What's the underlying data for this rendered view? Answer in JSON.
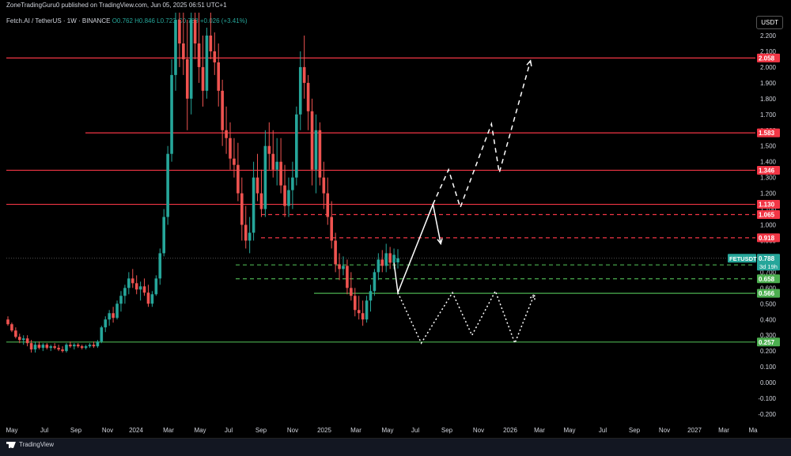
{
  "header": {
    "published_text": "ZoneTradingGuru0 published on TradingView.com, Jun 05, 2025 06:51 UTC+1",
    "legend_text": "Fetch.AI / TetherUS · 1W · BINANCE",
    "ohlc": "O0.762  H0.846  L0.723  C0.788  +0.026 (+3.41%)",
    "currency_button": "USDT"
  },
  "footer": {
    "brand": "TradingView"
  },
  "chart_data": {
    "type": "candlestick",
    "symbol": "FETUSDT",
    "x_tick_labels": [
      "May",
      "Jul",
      "Sep",
      "Nov",
      "2024",
      "Mar",
      "May",
      "Jul",
      "Sep",
      "Nov",
      "2025",
      "Mar",
      "May",
      "Jul",
      "Sep",
      "Nov",
      "2026",
      "Mar",
      "May",
      "Jul",
      "Sep",
      "Nov",
      "2027",
      "Mar",
      "Ma"
    ],
    "y_tick_labels": [
      "2.200",
      "2.100",
      "2.000",
      "1.900",
      "1.800",
      "1.700",
      "1.600",
      "1.500",
      "1.400",
      "1.300",
      "1.200",
      "1.100",
      "1.000",
      "0.900",
      "0.800",
      "0.700",
      "0.600",
      "0.500",
      "0.400",
      "0.300",
      "0.200",
      "0.100",
      "0.000",
      "-0.100",
      "-0.200"
    ],
    "ylim": [
      -0.24,
      2.26
    ],
    "current_price": {
      "label": "FETUSDT",
      "value": "0.788",
      "countdown": "3d 19h",
      "color": "#26a69a"
    },
    "resistance_levels": [
      {
        "value": "2.058",
        "style": "solid",
        "color": "#f23645"
      },
      {
        "value": "1.583",
        "style": "solid",
        "color": "#f23645"
      },
      {
        "value": "1.346",
        "style": "solid",
        "color": "#f23645"
      },
      {
        "value": "1.130",
        "style": "solid",
        "color": "#f23645"
      },
      {
        "value": "1.065",
        "style": "dashed",
        "color": "#f23645"
      },
      {
        "value": "0.918",
        "style": "dashed",
        "color": "#f23645"
      }
    ],
    "support_levels": [
      {
        "value": "0.746",
        "style": "dashed",
        "color": "#4caf50"
      },
      {
        "value": "0.658",
        "style": "dashed",
        "color": "#4caf50"
      },
      {
        "value": "0.566",
        "style": "solid",
        "color": "#4caf50"
      },
      {
        "value": "0.257",
        "style": "solid",
        "color": "#4caf50"
      }
    ],
    "candles_ohlc": [
      [
        0.4,
        0.42,
        0.36,
        0.37
      ],
      [
        0.37,
        0.38,
        0.32,
        0.33
      ],
      [
        0.33,
        0.35,
        0.28,
        0.29
      ],
      [
        0.29,
        0.31,
        0.25,
        0.27
      ],
      [
        0.27,
        0.3,
        0.24,
        0.28
      ],
      [
        0.28,
        0.3,
        0.23,
        0.25
      ],
      [
        0.25,
        0.27,
        0.19,
        0.21
      ],
      [
        0.21,
        0.26,
        0.19,
        0.24
      ],
      [
        0.24,
        0.26,
        0.21,
        0.22
      ],
      [
        0.22,
        0.25,
        0.2,
        0.24
      ],
      [
        0.24,
        0.25,
        0.21,
        0.22
      ],
      [
        0.22,
        0.24,
        0.2,
        0.23
      ],
      [
        0.23,
        0.25,
        0.21,
        0.22
      ],
      [
        0.22,
        0.24,
        0.2,
        0.21
      ],
      [
        0.21,
        0.23,
        0.19,
        0.2
      ],
      [
        0.2,
        0.25,
        0.19,
        0.24
      ],
      [
        0.24,
        0.26,
        0.22,
        0.23
      ],
      [
        0.23,
        0.25,
        0.21,
        0.24
      ],
      [
        0.24,
        0.25,
        0.22,
        0.23
      ],
      [
        0.23,
        0.24,
        0.21,
        0.22
      ],
      [
        0.22,
        0.24,
        0.21,
        0.23
      ],
      [
        0.23,
        0.25,
        0.22,
        0.24
      ],
      [
        0.24,
        0.26,
        0.22,
        0.23
      ],
      [
        0.23,
        0.27,
        0.22,
        0.26
      ],
      [
        0.26,
        0.36,
        0.25,
        0.35
      ],
      [
        0.35,
        0.42,
        0.32,
        0.4
      ],
      [
        0.4,
        0.46,
        0.36,
        0.44
      ],
      [
        0.44,
        0.48,
        0.38,
        0.41
      ],
      [
        0.41,
        0.52,
        0.4,
        0.5
      ],
      [
        0.5,
        0.58,
        0.45,
        0.55
      ],
      [
        0.55,
        0.62,
        0.5,
        0.6
      ],
      [
        0.6,
        0.7,
        0.56,
        0.66
      ],
      [
        0.66,
        0.72,
        0.6,
        0.63
      ],
      [
        0.63,
        0.68,
        0.56,
        0.59
      ],
      [
        0.59,
        0.64,
        0.52,
        0.61
      ],
      [
        0.61,
        0.66,
        0.55,
        0.57
      ],
      [
        0.57,
        0.62,
        0.48,
        0.5
      ],
      [
        0.5,
        0.58,
        0.48,
        0.56
      ],
      [
        0.56,
        0.68,
        0.55,
        0.66
      ],
      [
        0.66,
        0.85,
        0.62,
        0.82
      ],
      [
        0.82,
        1.1,
        0.8,
        1.05
      ],
      [
        1.05,
        1.5,
        1.0,
        1.45
      ],
      [
        1.45,
        2.05,
        1.4,
        1.95
      ],
      [
        1.95,
        2.4,
        1.85,
        2.3
      ],
      [
        2.3,
        2.45,
        2.0,
        2.15
      ],
      [
        2.15,
        2.35,
        1.95,
        2.05
      ],
      [
        2.05,
        2.3,
        1.6,
        1.8
      ],
      [
        1.8,
        2.4,
        1.7,
        2.3
      ],
      [
        2.3,
        2.45,
        2.05,
        2.15
      ],
      [
        2.15,
        2.35,
        1.9,
        2.0
      ],
      [
        2.0,
        2.2,
        1.75,
        1.85
      ],
      [
        1.85,
        2.25,
        1.8,
        2.2
      ],
      [
        2.2,
        2.4,
        2.05,
        2.1
      ],
      [
        2.1,
        2.22,
        1.95,
        2.03
      ],
      [
        2.03,
        2.15,
        1.75,
        1.85
      ],
      [
        1.85,
        1.92,
        1.5,
        1.6
      ],
      [
        1.6,
        1.75,
        1.45,
        1.55
      ],
      [
        1.55,
        1.65,
        1.35,
        1.42
      ],
      [
        1.42,
        1.55,
        1.3,
        1.38
      ],
      [
        1.38,
        1.52,
        1.15,
        1.2
      ],
      [
        1.2,
        1.3,
        0.9,
        1.0
      ],
      [
        1.0,
        1.12,
        0.85,
        0.9
      ],
      [
        0.9,
        1.05,
        0.82,
        0.95
      ],
      [
        0.95,
        1.4,
        0.9,
        1.3
      ],
      [
        1.3,
        1.45,
        1.15,
        1.2
      ],
      [
        1.2,
        1.35,
        1.05,
        1.1
      ],
      [
        1.1,
        1.6,
        1.05,
        1.5
      ],
      [
        1.5,
        1.65,
        1.35,
        1.45
      ],
      [
        1.45,
        1.6,
        1.3,
        1.35
      ],
      [
        1.35,
        1.55,
        1.25,
        1.4
      ],
      [
        1.4,
        1.55,
        1.2,
        1.25
      ],
      [
        1.25,
        1.38,
        1.05,
        1.12
      ],
      [
        1.12,
        1.3,
        1.05,
        1.22
      ],
      [
        1.22,
        1.4,
        1.1,
        1.3
      ],
      [
        1.3,
        1.75,
        1.25,
        1.7
      ],
      [
        1.7,
        2.1,
        1.6,
        2.0
      ],
      [
        2.0,
        2.2,
        1.8,
        1.9
      ],
      [
        1.9,
        1.95,
        1.6,
        1.72
      ],
      [
        1.72,
        1.8,
        1.25,
        1.35
      ],
      [
        1.35,
        1.7,
        1.2,
        1.6
      ],
      [
        1.6,
        1.65,
        1.25,
        1.3
      ],
      [
        1.3,
        1.4,
        1.1,
        1.2
      ],
      [
        1.2,
        1.3,
        1.0,
        1.05
      ],
      [
        1.05,
        1.15,
        0.85,
        0.9
      ],
      [
        0.9,
        0.95,
        0.7,
        0.75
      ],
      [
        0.75,
        0.82,
        0.65,
        0.72
      ],
      [
        0.72,
        0.8,
        0.68,
        0.74
      ],
      [
        0.74,
        0.78,
        0.56,
        0.6
      ],
      [
        0.6,
        0.7,
        0.52,
        0.55
      ],
      [
        0.55,
        0.6,
        0.42,
        0.46
      ],
      [
        0.46,
        0.55,
        0.4,
        0.44
      ],
      [
        0.44,
        0.52,
        0.36,
        0.4
      ],
      [
        0.4,
        0.55,
        0.38,
        0.52
      ],
      [
        0.52,
        0.62,
        0.45,
        0.58
      ],
      [
        0.58,
        0.72,
        0.55,
        0.7
      ],
      [
        0.7,
        0.82,
        0.65,
        0.78
      ],
      [
        0.78,
        0.84,
        0.7,
        0.74
      ],
      [
        0.74,
        0.88,
        0.7,
        0.82
      ],
      [
        0.82,
        0.86,
        0.72,
        0.76
      ],
      [
        0.76,
        0.85,
        0.72,
        0.81
      ],
      [
        0.762,
        0.846,
        0.723,
        0.788
      ]
    ],
    "projected_paths": [
      {
        "style": "solid",
        "color": "#ffffff",
        "points": [
          [
            "w99",
            0.76
          ],
          [
            "w100",
            0.57
          ],
          [
            "w109",
            1.13
          ],
          [
            "w111",
            0.88
          ]
        ]
      },
      {
        "style": "dashed",
        "color": "#ffffff",
        "points": [
          [
            "w109",
            1.13
          ],
          [
            "w113",
            1.35
          ],
          [
            "w116",
            1.11
          ],
          [
            "w124",
            1.64
          ],
          [
            "w126",
            1.33
          ],
          [
            "w134",
            2.04
          ]
        ]
      },
      {
        "style": "dotted",
        "color": "#ffffff",
        "points": [
          [
            "w100",
            0.57
          ],
          [
            "w106",
            0.25
          ],
          [
            "w114",
            0.57
          ],
          [
            "w119",
            0.3
          ],
          [
            "w125",
            0.58
          ],
          [
            "w130",
            0.25
          ],
          [
            "w135",
            0.56
          ]
        ]
      }
    ]
  }
}
